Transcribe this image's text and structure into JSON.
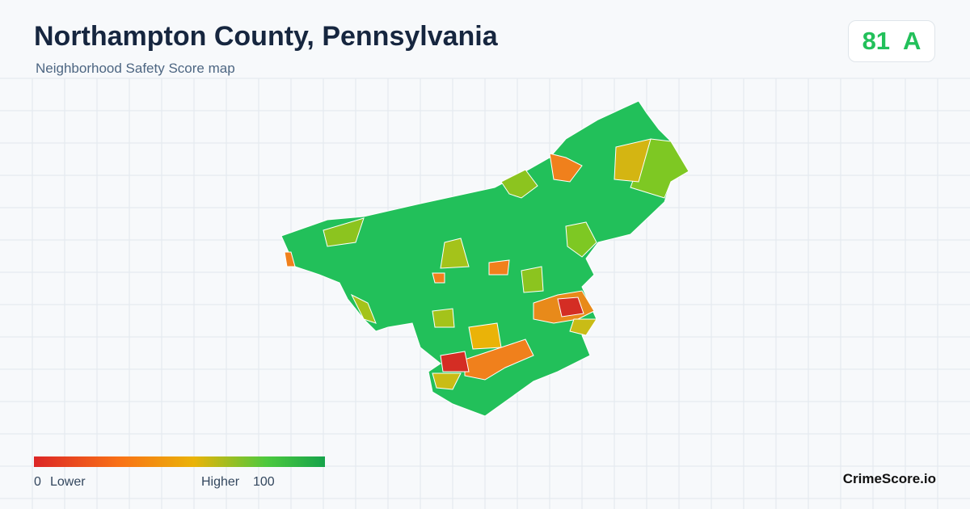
{
  "header": {
    "title": "Northampton County, Pennsylvania",
    "subtitle": "Neighborhood Safety Score map"
  },
  "score": {
    "value": "81",
    "grade": "A"
  },
  "legend": {
    "min": "0",
    "min_label": "Lower",
    "max_label": "Higher",
    "max": "100"
  },
  "brand": "CrimeScore.io"
}
